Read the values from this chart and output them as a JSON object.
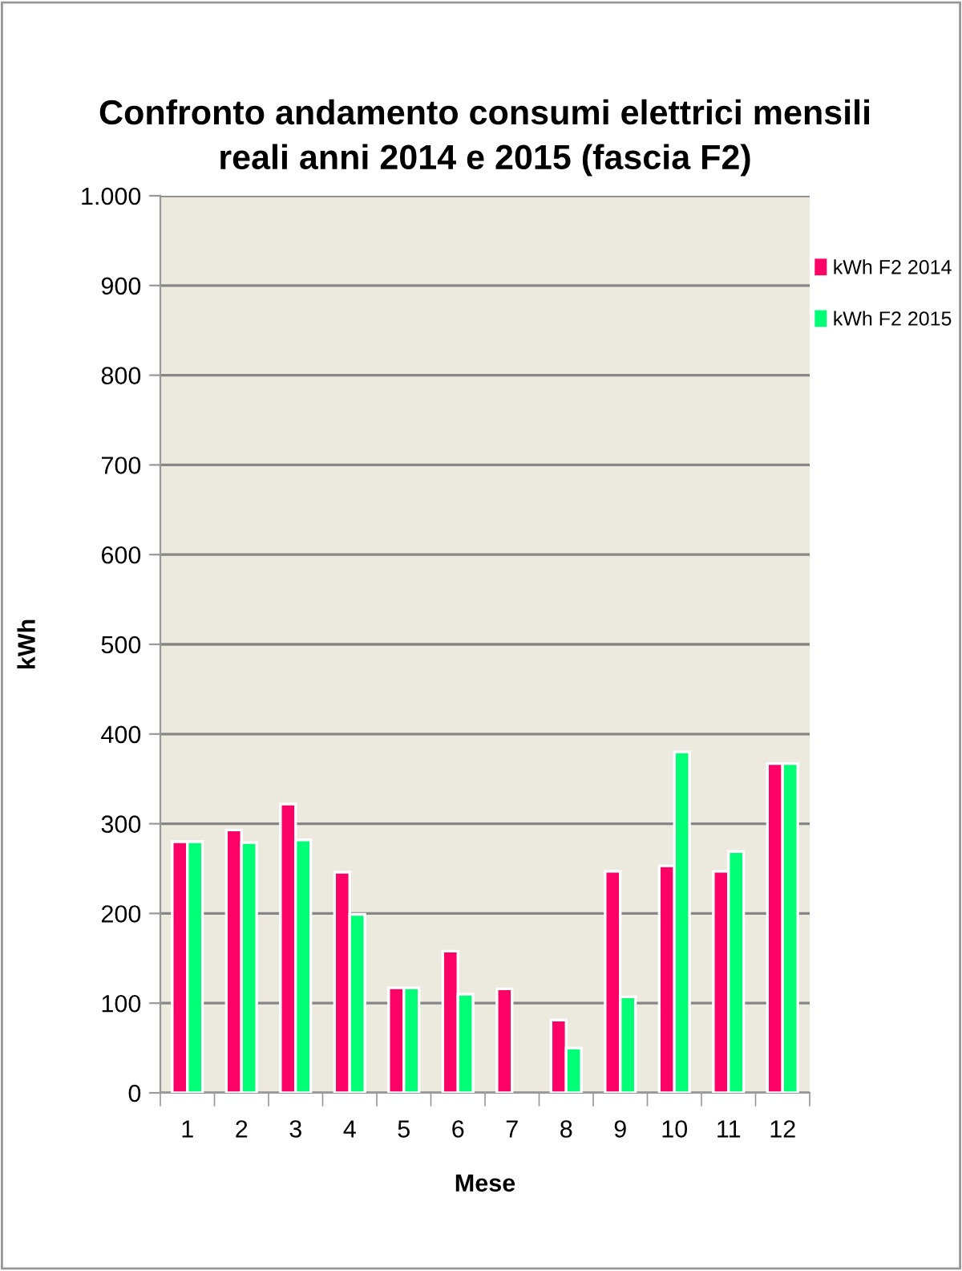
{
  "chart_data": {
    "type": "bar",
    "title": "Confronto andamento consumi elettrici mensili\nreali anni 2014 e 2015 (fascia F2)",
    "xlabel": "Mese",
    "ylabel": "kWh",
    "categories": [
      "1",
      "2",
      "3",
      "4",
      "5",
      "6",
      "7",
      "8",
      "9",
      "10",
      "11",
      "12"
    ],
    "series": [
      {
        "name": "kWh F2 2014",
        "color": "#ff0066",
        "values": [
          280,
          293,
          322,
          246,
          117,
          158,
          116,
          81,
          247,
          253,
          247,
          367
        ]
      },
      {
        "name": "kWh F2 2015",
        "color": "#00ff77",
        "values": [
          280,
          279,
          282,
          199,
          117,
          110,
          null,
          50,
          107,
          380,
          269,
          367
        ]
      }
    ],
    "ylim": [
      0,
      1000
    ],
    "yticks": [
      0,
      100,
      200,
      300,
      400,
      500,
      600,
      700,
      800,
      900,
      {
        "value": 1000,
        "label": "1.000"
      }
    ],
    "grid": "y",
    "legend": "right"
  }
}
